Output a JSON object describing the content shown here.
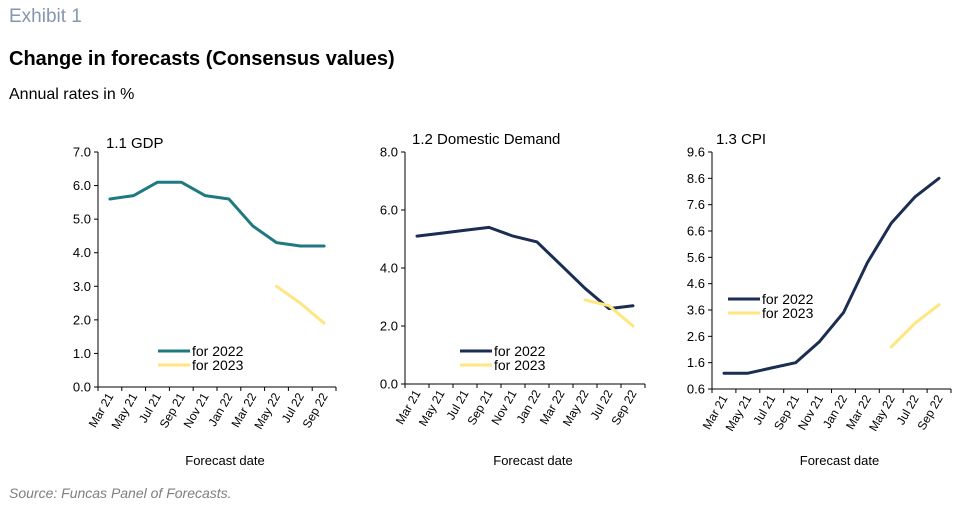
{
  "header": {
    "exhibit": "Exhibit 1",
    "title": "Change in forecasts (Consensus values)",
    "subtitle": "Annual rates in %"
  },
  "footer": {
    "source": "Source: Funcas Panel of Forecasts."
  },
  "colors": {
    "series_2022": "#1f7a80",
    "series_2023": "#ffe680"
  },
  "chart_data": [
    {
      "type": "line",
      "title": "1.1 GDP",
      "xlabel": "Forecast date",
      "ylabel": "",
      "categories": [
        "Mar 21",
        "May 21",
        "Jul 21",
        "Sep 21",
        "Nov 21",
        "Jan 22",
        "Mar 22",
        "May 22",
        "Jul 22",
        "Sep 22"
      ],
      "ylim": [
        0,
        7
      ],
      "yticks": [
        "0.0",
        "1.0",
        "2.0",
        "3.0",
        "4.0",
        "5.0",
        "6.0",
        "7.0"
      ],
      "grid": false,
      "legend": "bottom-left",
      "series": [
        {
          "name": "for 2022",
          "color": "#1f7a80",
          "values": [
            5.6,
            5.7,
            6.1,
            6.1,
            5.7,
            5.6,
            4.8,
            4.3,
            4.2,
            4.2
          ]
        },
        {
          "name": "for 2023",
          "color": "#ffe680",
          "values": [
            null,
            null,
            null,
            null,
            null,
            null,
            null,
            3.0,
            2.5,
            1.9
          ]
        }
      ]
    },
    {
      "type": "line",
      "title": "1.2 Domestic Demand",
      "xlabel": "Forecast date",
      "ylabel": "",
      "categories": [
        "Mar 21",
        "May 21",
        "Jul 21",
        "Sep 21",
        "Nov 21",
        "Jan 22",
        "Mar 22",
        "May 22",
        "Jul 22",
        "Sep 22"
      ],
      "ylim": [
        0,
        8
      ],
      "yticks": [
        "0.0",
        "2.0",
        "4.0",
        "6.0",
        "8.0"
      ],
      "grid": false,
      "legend": "bottom-left",
      "series": [
        {
          "name": "for 2022",
          "color": "#1b2d52",
          "values": [
            5.1,
            5.2,
            5.3,
            5.4,
            5.1,
            4.9,
            4.1,
            3.3,
            2.6,
            2.7
          ]
        },
        {
          "name": "for 2023",
          "color": "#ffe680",
          "values": [
            null,
            null,
            null,
            null,
            null,
            null,
            null,
            2.9,
            2.7,
            2.0
          ]
        }
      ]
    },
    {
      "type": "line",
      "title": "1.3 CPI",
      "xlabel": "Forecast date",
      "ylabel": "",
      "categories": [
        "Mar 21",
        "May 21",
        "Jul 21",
        "Sep 21",
        "Nov 21",
        "Jan 22",
        "Mar 22",
        "May 22",
        "Jul 22",
        "Sep 22"
      ],
      "ylim": [
        0.6,
        9.6
      ],
      "yticks": [
        "0.6",
        "1.6",
        "2.6",
        "3.6",
        "4.6",
        "5.6",
        "6.6",
        "7.6",
        "8.6",
        "9.6"
      ],
      "grid": false,
      "legend": "middle-left",
      "series": [
        {
          "name": "for 2022",
          "color": "#1b2d52",
          "values": [
            1.2,
            1.2,
            1.4,
            1.6,
            2.4,
            3.5,
            5.4,
            6.9,
            7.9,
            8.6
          ]
        },
        {
          "name": "for 2023",
          "color": "#ffe680",
          "values": [
            null,
            null,
            null,
            null,
            null,
            null,
            null,
            2.2,
            3.1,
            3.8
          ]
        }
      ]
    }
  ]
}
